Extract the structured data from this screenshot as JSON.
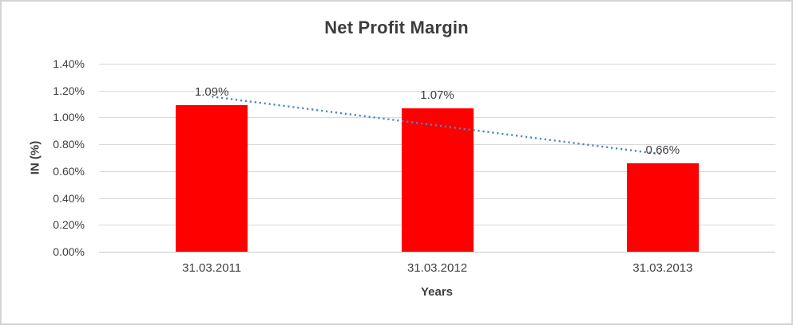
{
  "chart_data": {
    "type": "bar",
    "title": "Net Profit Margin",
    "xlabel": "Years",
    "ylabel": "IN (%)",
    "categories": [
      "31.03.2011",
      "31.03.2012",
      "31.03.2013"
    ],
    "values": [
      1.09,
      1.07,
      0.66
    ],
    "data_labels": [
      "1.09%",
      "1.07%",
      "0.66%"
    ],
    "ylim": [
      0,
      1.4
    ],
    "ytick_step": 0.2,
    "ytick_labels": [
      "0.00%",
      "0.20%",
      "0.40%",
      "0.60%",
      "0.80%",
      "1.00%",
      "1.20%",
      "1.40%"
    ],
    "grid": true,
    "legend": "none",
    "bar_color": "#ff0000",
    "trendline": {
      "type": "linear",
      "style": "dotted",
      "color": "#4a86c8"
    },
    "colors": {
      "title_text": "#3d3d3d",
      "axis_text": "#404040",
      "gridline": "#d9d9d9",
      "axis_line": "#c6c6c6",
      "window_border": "#d4d4d4",
      "background": "#ffffff"
    }
  }
}
